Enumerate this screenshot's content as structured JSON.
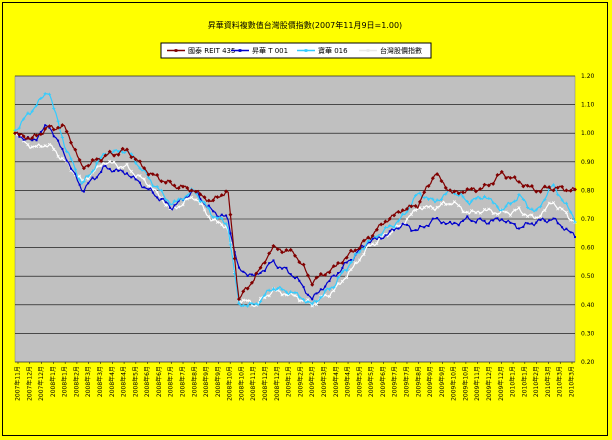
{
  "chart_data": {
    "type": "line",
    "title": "昇華資料複數值台灣股價指數(2007年11月9日=1.00)",
    "xlabel": "",
    "ylabel": "",
    "ylim": [
      0.2,
      1.2
    ],
    "yticks": [
      "0.20",
      "0.30",
      "0.40",
      "0.50",
      "0.60",
      "0.70",
      "0.80",
      "0.90",
      "1.00",
      "1.10",
      "1.20"
    ],
    "grid": true,
    "legend_position": "top-center",
    "x_start": "2007-11-09",
    "x_end": "2010-03-31",
    "x_tick_labels": [
      "2007年11月",
      "2007年12月",
      "2007年12月",
      "2008年1月",
      "2008年1月",
      "2008年2月",
      "2008年3月",
      "2008年3月",
      "2008年4月",
      "2008年4月",
      "2008年5月",
      "2008年6月",
      "2008年6月",
      "2008年7月",
      "2008年7月",
      "2008年8月",
      "2008年9月",
      "2008年9月",
      "2008年10月",
      "2008年10月",
      "2008年11月",
      "2008年12月",
      "2008年12月",
      "2009年1月",
      "2009年2月",
      "2009年2月",
      "2009年3月",
      "2009年4月",
      "2009年4月",
      "2009年5月",
      "2009年5月",
      "2009年6月",
      "2009年7月",
      "2009年7月",
      "2009年8月",
      "2009年9月",
      "2009年9月",
      "2009年10月",
      "2009年10月",
      "2009年11月",
      "2009年12月",
      "2009年12月",
      "2010年1月",
      "2010年1月",
      "2010年2月",
      "2010年3月",
      "2010年3月",
      "2010年3月"
    ],
    "x": [
      0,
      0.03,
      0.06,
      0.09,
      0.12,
      0.16,
      0.2,
      0.24,
      0.28,
      0.32,
      0.35,
      0.38,
      0.4,
      0.43,
      0.46,
      0.5,
      0.53,
      0.57,
      0.6,
      0.63,
      0.66,
      0.69,
      0.72,
      0.75,
      0.78,
      0.81,
      0.84,
      0.87,
      0.9,
      0.93,
      0.96,
      1.0
    ],
    "series": [
      {
        "name": "國泰 REIT 435",
        "color": "#800000",
        "values": [
          1.0,
          0.98,
          1.02,
          1.02,
          0.88,
          0.92,
          0.94,
          0.86,
          0.82,
          0.8,
          0.76,
          0.8,
          0.42,
          0.5,
          0.6,
          0.58,
          0.48,
          0.53,
          0.58,
          0.63,
          0.69,
          0.73,
          0.75,
          0.86,
          0.79,
          0.8,
          0.81,
          0.86,
          0.83,
          0.8,
          0.81,
          0.8
        ]
      },
      {
        "name": "昇華 T 001",
        "color": "#0000cc",
        "values": [
          1.0,
          0.97,
          1.03,
          0.92,
          0.8,
          0.88,
          0.86,
          0.8,
          0.74,
          0.8,
          0.73,
          0.7,
          0.52,
          0.5,
          0.55,
          0.5,
          0.42,
          0.5,
          0.56,
          0.62,
          0.64,
          0.68,
          0.66,
          0.7,
          0.68,
          0.7,
          0.69,
          0.7,
          0.67,
          0.69,
          0.7,
          0.64
        ]
      },
      {
        "name": "寶華 016",
        "color": "#33ccff",
        "values": [
          1.01,
          1.08,
          1.15,
          0.95,
          0.82,
          0.93,
          0.94,
          0.84,
          0.75,
          0.8,
          0.72,
          0.68,
          0.4,
          0.4,
          0.46,
          0.44,
          0.4,
          0.47,
          0.55,
          0.62,
          0.66,
          0.7,
          0.79,
          0.76,
          0.8,
          0.76,
          0.78,
          0.73,
          0.78,
          0.72,
          0.82,
          0.7
        ]
      },
      {
        "name": "台灣股價指數",
        "color": "#ffffff",
        "values": [
          1.0,
          0.95,
          0.96,
          0.9,
          0.83,
          0.9,
          0.88,
          0.82,
          0.73,
          0.78,
          0.7,
          0.67,
          0.42,
          0.4,
          0.45,
          0.43,
          0.4,
          0.45,
          0.52,
          0.6,
          0.64,
          0.68,
          0.74,
          0.74,
          0.76,
          0.72,
          0.73,
          0.72,
          0.73,
          0.7,
          0.76,
          0.69
        ]
      }
    ]
  }
}
